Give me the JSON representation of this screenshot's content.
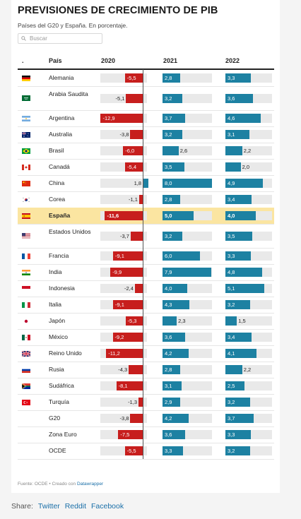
{
  "title": "PREVISIONES DE CRECIMIENTO DE PIB",
  "subtitle": "Países del G20 y España. En porcentaje.",
  "search": {
    "placeholder": "Buscar"
  },
  "headers": {
    "flag": ".",
    "country": "País",
    "y2020": "2020",
    "y2021": "2021",
    "y2022": "2022"
  },
  "footer": {
    "source": "Fuente: OCDE • Creado con ",
    "tool": "Datawrapper"
  },
  "share": {
    "label": "Share:",
    "twitter": "Twitter",
    "reddit": "Reddit",
    "facebook": "Facebook"
  },
  "colors": {
    "negative": "#c71e1d",
    "positive": "#1d81a2",
    "track": "#e9e9e9",
    "highlight": "#fbe5a1"
  },
  "chart_data": {
    "type": "table",
    "columns": [
      "2020",
      "2021",
      "2022"
    ],
    "highlight_row": "España",
    "rows": [
      {
        "country": "Alemania",
        "flag": "germany-flag",
        "values": [
          -5.5,
          2.8,
          3.3
        ],
        "labels": [
          "-5,5",
          "2,8",
          "3,3"
        ]
      },
      {
        "country": "Arabia Saudita",
        "flag": "saudi-arabia-flag",
        "values": [
          -5.1,
          3.2,
          3.6
        ],
        "labels": [
          "-5,1",
          "3,2",
          "3,6"
        ]
      },
      {
        "country": "Argentina",
        "flag": "argentina-flag",
        "values": [
          -12.9,
          3.7,
          4.6
        ],
        "labels": [
          "-12,9",
          "3,7",
          "4,6"
        ]
      },
      {
        "country": "Australia",
        "flag": "australia-flag",
        "values": [
          -3.8,
          3.2,
          3.1
        ],
        "labels": [
          "-3,8",
          "3,2",
          "3,1"
        ]
      },
      {
        "country": "Brasil",
        "flag": "brazil-flag",
        "values": [
          -6.0,
          2.6,
          2.2
        ],
        "labels": [
          "-6,0",
          "2,6",
          "2,2"
        ]
      },
      {
        "country": "Canadá",
        "flag": "canada-flag",
        "values": [
          -5.4,
          3.5,
          2.0
        ],
        "labels": [
          "-5,4",
          "3,5",
          "2,0"
        ]
      },
      {
        "country": "China",
        "flag": "china-flag",
        "values": [
          1.8,
          8.0,
          4.9
        ],
        "labels": [
          "1,8",
          "8,0",
          "4,9"
        ]
      },
      {
        "country": "Corea",
        "flag": "korea-flag",
        "values": [
          -1.1,
          2.8,
          3.4
        ],
        "labels": [
          "-1,1",
          "2,8",
          "3,4"
        ]
      },
      {
        "country": "España",
        "flag": "spain-flag",
        "values": [
          -11.6,
          5.0,
          4.0
        ],
        "labels": [
          "-11,6",
          "5,0",
          "4,0"
        ]
      },
      {
        "country": "Estados Unidos",
        "flag": "usa-flag",
        "values": [
          -3.7,
          3.2,
          3.5
        ],
        "labels": [
          "-3,7",
          "3,2",
          "3,5"
        ]
      },
      {
        "country": "Francia",
        "flag": "france-flag",
        "values": [
          -9.1,
          6.0,
          3.3
        ],
        "labels": [
          "-9,1",
          "6,0",
          "3,3"
        ]
      },
      {
        "country": "India",
        "flag": "india-flag",
        "values": [
          -9.9,
          7.9,
          4.8
        ],
        "labels": [
          "-9,9",
          "7,9",
          "4,8"
        ]
      },
      {
        "country": "Indonesia",
        "flag": "indonesia-flag",
        "values": [
          -2.4,
          4.0,
          5.1
        ],
        "labels": [
          "-2,4",
          "4,0",
          "5,1"
        ]
      },
      {
        "country": "Italia",
        "flag": "italy-flag",
        "values": [
          -9.1,
          4.3,
          3.2
        ],
        "labels": [
          "-9,1",
          "4,3",
          "3,2"
        ]
      },
      {
        "country": "Japón",
        "flag": "japan-flag",
        "values": [
          -5.3,
          2.3,
          1.5
        ],
        "labels": [
          "-5,3",
          "2,3",
          "1,5"
        ]
      },
      {
        "country": "México",
        "flag": "mexico-flag",
        "values": [
          -9.2,
          3.6,
          3.4
        ],
        "labels": [
          "-9,2",
          "3,6",
          "3,4"
        ]
      },
      {
        "country": "Reino Unido",
        "flag": "uk-flag",
        "values": [
          -11.2,
          4.2,
          4.1
        ],
        "labels": [
          "-11,2",
          "4,2",
          "4,1"
        ]
      },
      {
        "country": "Rusia",
        "flag": "russia-flag",
        "values": [
          -4.3,
          2.8,
          2.2
        ],
        "labels": [
          "-4,3",
          "2,8",
          "2,2"
        ]
      },
      {
        "country": "Sudáfrica",
        "flag": "south-africa-flag",
        "values": [
          -8.1,
          3.1,
          2.5
        ],
        "labels": [
          "-8,1",
          "3,1",
          "2,5"
        ]
      },
      {
        "country": "Turquía",
        "flag": "turkey-flag",
        "values": [
          -1.3,
          2.9,
          3.2
        ],
        "labels": [
          "-1,3",
          "2,9",
          "3,2"
        ]
      },
      {
        "country": "G20",
        "flag": "",
        "values": [
          -3.8,
          4.2,
          3.7
        ],
        "labels": [
          "-3,8",
          "4,2",
          "3,7"
        ]
      },
      {
        "country": "Zona Euro",
        "flag": "",
        "values": [
          -7.5,
          3.6,
          3.3
        ],
        "labels": [
          "-7,5",
          "3,6",
          "3,3"
        ]
      },
      {
        "country": "OCDE",
        "flag": "",
        "values": [
          -5.5,
          3.3,
          3.2
        ],
        "labels": [
          "-5,5",
          "3,3",
          "3,2"
        ]
      }
    ]
  }
}
